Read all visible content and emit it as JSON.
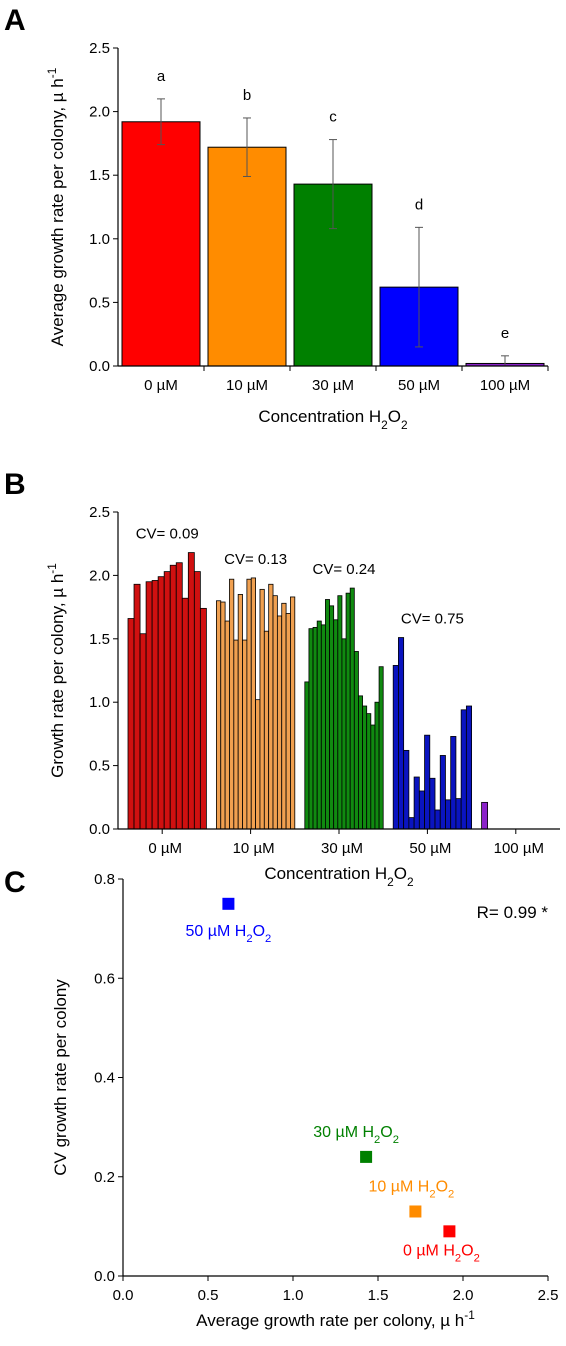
{
  "chart_data": [
    {
      "panel": "A",
      "type": "bar",
      "categories": [
        "0 µM",
        "10 µM",
        "30 µM",
        "50 µM",
        "100 µM"
      ],
      "values": [
        1.92,
        1.72,
        1.43,
        0.62,
        0.02
      ],
      "errors": [
        0.18,
        0.23,
        0.35,
        0.47,
        0.06
      ],
      "letters": [
        "a",
        "b",
        "c",
        "d",
        "e"
      ],
      "colors": [
        "#ff0000",
        "#ff8c00",
        "#008000",
        "#0000ff",
        "#8b22c9"
      ],
      "xlabel": "Concentration H",
      "xlabel_sub1": "2",
      "xlabel_mid": "O",
      "xlabel_sub2": "2",
      "ylabel": "Average growth rate per colony, µ h",
      "ylabel_sup": "-1",
      "ylim": [
        0,
        2.5
      ],
      "yticks": [
        "0.0",
        "0.5",
        "1.0",
        "1.5",
        "2.0",
        "2.5"
      ]
    },
    {
      "panel": "B",
      "type": "bar",
      "categories": [
        "0 µM",
        "10 µM",
        "30 µM",
        "50 µM",
        "100 µM"
      ],
      "groups": [
        {
          "name": "0 µM",
          "cv": "CV= 0.09",
          "color": "#d01010",
          "values": [
            1.66,
            1.93,
            1.54,
            1.95,
            1.96,
            1.99,
            2.03,
            2.08,
            2.1,
            1.82,
            2.18,
            2.03,
            1.74
          ]
        },
        {
          "name": "10 µM",
          "cv": "CV= 0.13",
          "color": "#f0a050",
          "values": [
            1.8,
            1.79,
            1.64,
            1.97,
            1.49,
            1.85,
            1.49,
            1.97,
            1.98,
            1.02,
            1.89,
            1.56,
            1.93,
            1.84,
            1.68,
            1.78,
            1.7,
            1.83
          ]
        },
        {
          "name": "30 µM",
          "cv": "CV= 0.24",
          "color": "#108a10",
          "values": [
            1.16,
            1.58,
            1.59,
            1.64,
            1.61,
            1.81,
            1.76,
            1.65,
            1.84,
            1.5,
            1.86,
            1.9,
            1.4,
            1.05,
            0.97,
            0.91,
            0.82,
            1.0,
            1.28
          ]
        },
        {
          "name": "50 µM",
          "cv": "CV= 0.75",
          "color": "#0a14c0",
          "values": [
            1.29,
            1.51,
            0.62,
            0.09,
            0.41,
            0.3,
            0.74,
            0.4,
            0.15,
            0.58,
            0.23,
            0.73,
            0.24,
            0.94,
            0.97
          ]
        },
        {
          "name": "100 µM",
          "cv": "",
          "color": "#8b22c9",
          "values": [
            0.21
          ]
        }
      ],
      "xlabel": "Concentration H",
      "xlabel_sub1": "2",
      "xlabel_mid": "O",
      "xlabel_sub2": "2",
      "ylabel": "Growth rate per colony, µ h",
      "ylabel_sup": "-1",
      "ylim": [
        0,
        2.5
      ],
      "yticks": [
        "0.0",
        "0.5",
        "1.0",
        "1.5",
        "2.0",
        "2.5"
      ]
    },
    {
      "panel": "C",
      "type": "scatter",
      "points": [
        {
          "x": 0.62,
          "y": 0.75,
          "label": "50 µM H",
          "sub1": "2",
          "mid": "O",
          "sub2": "2",
          "color": "#0000ff"
        },
        {
          "x": 1.43,
          "y": 0.24,
          "label": "30 µM H",
          "sub1": "2",
          "mid": "O",
          "sub2": "2",
          "color": "#008000"
        },
        {
          "x": 1.72,
          "y": 0.13,
          "label": "10 µM H",
          "sub1": "2",
          "mid": "O",
          "sub2": "2",
          "color": "#ff8c00"
        },
        {
          "x": 1.92,
          "y": 0.09,
          "label": "0 µM H",
          "sub1": "2",
          "mid": "O",
          "sub2": "2",
          "color": "#ff0000"
        }
      ],
      "annotation": "R= 0.99 *",
      "xlabel": "Average growth rate per colony, µ h",
      "xlabel_sup": "-1",
      "ylabel": "CV growth rate per colony",
      "xlim": [
        0,
        2.5
      ],
      "ylim": [
        0,
        0.8
      ],
      "xticks": [
        "0.0",
        "0.5",
        "1.0",
        "1.5",
        "2.0",
        "2.5"
      ],
      "yticks": [
        "0.0",
        "0.2",
        "0.4",
        "0.6",
        "0.8"
      ]
    }
  ]
}
